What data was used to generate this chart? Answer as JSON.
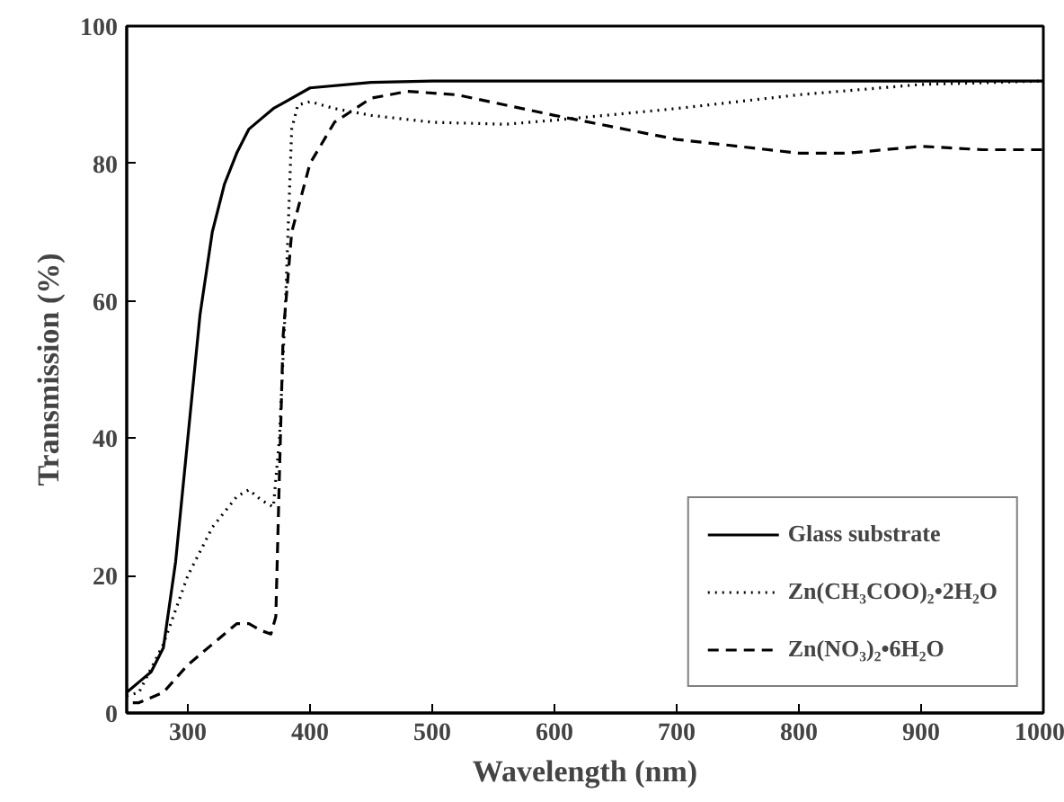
{
  "chart_data": {
    "type": "line",
    "xlabel": "Wavelength (nm)",
    "ylabel": "Transmission (%)",
    "xlim": [
      250,
      1000
    ],
    "ylim": [
      0,
      100
    ],
    "xticks": [
      300,
      400,
      500,
      600,
      700,
      800,
      900,
      1000
    ],
    "yticks": [
      0,
      20,
      40,
      60,
      80,
      100
    ],
    "grid": false,
    "legend": "bottom right",
    "marker": "none",
    "series": [
      {
        "name": "Glass substrate",
        "color": "#000000",
        "line_style": "solid",
        "x": [
          250,
          260,
          270,
          280,
          290,
          300,
          310,
          320,
          330,
          340,
          350,
          360,
          370,
          380,
          400,
          450,
          500,
          600,
          700,
          800,
          900,
          1000
        ],
        "values": [
          3,
          4.5,
          6,
          9.5,
          22,
          40,
          58,
          70,
          77,
          81.5,
          85,
          86.5,
          88,
          89,
          91,
          91.8,
          92,
          92,
          92,
          92,
          92,
          92
        ]
      },
      {
        "name": "Zn(CH₃COO)₂•2H₂O",
        "color": "#000000",
        "line_style": "dotted",
        "x": [
          250,
          260,
          280,
          300,
          320,
          340,
          350,
          360,
          370,
          375,
          380,
          385,
          390,
          400,
          420,
          450,
          500,
          560,
          600,
          700,
          800,
          900,
          1000
        ],
        "values": [
          2.5,
          3,
          10,
          20,
          27,
          31.5,
          32.5,
          31,
          30,
          40,
          60,
          85,
          88.5,
          89,
          88,
          87,
          86,
          85.7,
          86.3,
          88,
          90,
          91.5,
          92
        ]
      },
      {
        "name": "Zn(NO₃)₂•6H₂O",
        "color": "#000000",
        "line_style": "dashed",
        "x": [
          255,
          260,
          280,
          300,
          320,
          340,
          350,
          360,
          368,
          372,
          375,
          378,
          385,
          400,
          420,
          450,
          480,
          520,
          600,
          700,
          800,
          840,
          900,
          950,
          1000
        ],
        "values": [
          1.5,
          1.5,
          3,
          7,
          10,
          13,
          13,
          12,
          11.5,
          14,
          35,
          55,
          70,
          80,
          86,
          89.5,
          90.5,
          90,
          87,
          83.5,
          81.5,
          81.5,
          82.5,
          82,
          82
        ]
      }
    ]
  }
}
